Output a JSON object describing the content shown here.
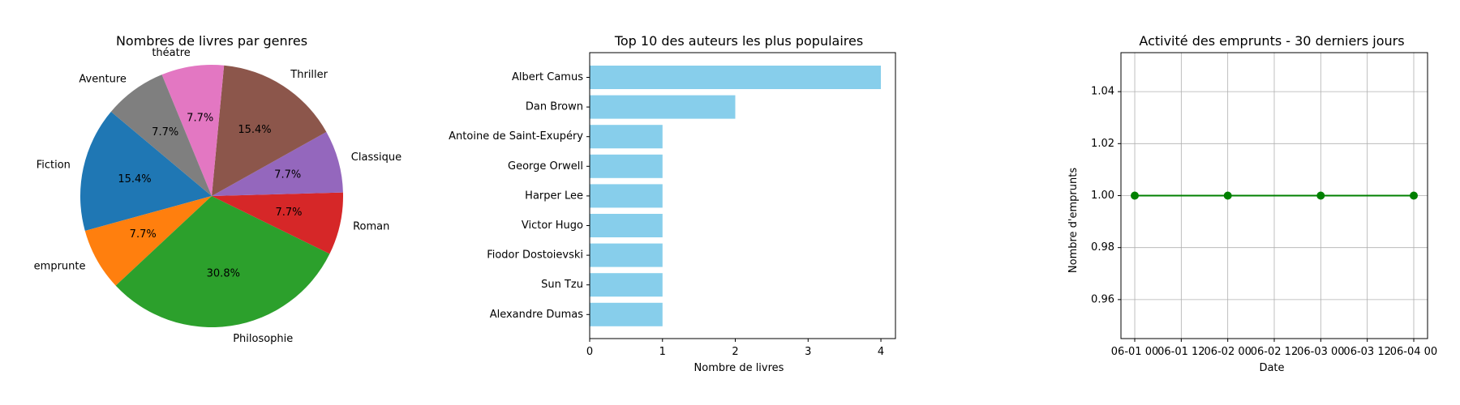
{
  "chart_data": [
    {
      "type": "pie",
      "title": "Nombres de livres par genres",
      "slices": [
        {
          "label": "Fiction",
          "value": 2,
          "pct_label": "15.4%",
          "color": "#1f77b4"
        },
        {
          "label": "emprunte",
          "value": 1,
          "pct_label": "7.7%",
          "color": "#ff7f0e"
        },
        {
          "label": "Philosophie",
          "value": 4,
          "pct_label": "30.8%",
          "color": "#2ca02c"
        },
        {
          "label": "Roman",
          "value": 1,
          "pct_label": "7.7%",
          "color": "#d62728"
        },
        {
          "label": "Classique",
          "value": 1,
          "pct_label": "7.7%",
          "color": "#9467bd"
        },
        {
          "label": "Thriller",
          "value": 2,
          "pct_label": "15.4%",
          "color": "#8c564b"
        },
        {
          "label": "théatre",
          "value": 1,
          "pct_label": "7.7%",
          "color": "#e377c2"
        },
        {
          "label": "Aventure",
          "value": 1,
          "pct_label": "7.7%",
          "color": "#7f7f7f"
        }
      ]
    },
    {
      "type": "bar",
      "orientation": "horizontal",
      "title": "Top 10 des auteurs les plus populaires",
      "xlabel": "Nombre de livres",
      "ylabel": "",
      "categories": [
        "Albert Camus",
        "Dan Brown",
        "Antoine de Saint-Exupéry",
        "George Orwell",
        "Harper Lee",
        "Victor Hugo",
        "Fiodor Dostoievski",
        "Sun Tzu",
        "Alexandre Dumas"
      ],
      "values": [
        4,
        2,
        1,
        1,
        1,
        1,
        1,
        1,
        1
      ],
      "xlim": [
        0,
        4.2
      ],
      "xticks": [
        0,
        1,
        2,
        3,
        4
      ],
      "bar_color": "#87ceeb"
    },
    {
      "type": "line",
      "title": "Activité des emprunts - 30 derniers jours",
      "xlabel": "Date",
      "ylabel": "Nombre d'emprunts",
      "x": [
        "06-01",
        "06-02",
        "06-03",
        "06-04"
      ],
      "y": [
        1,
        1,
        1,
        1
      ],
      "xticks": [
        "06-01 00",
        "06-01 12",
        "06-02 00",
        "06-02 12",
        "06-03 00",
        "06-03 12",
        "06-04 00"
      ],
      "ylim": [
        0.945,
        1.055
      ],
      "yticks": [
        "0.96",
        "0.98",
        "1.00",
        "1.02",
        "1.04"
      ],
      "grid": true,
      "line_color": "#008000"
    }
  ]
}
